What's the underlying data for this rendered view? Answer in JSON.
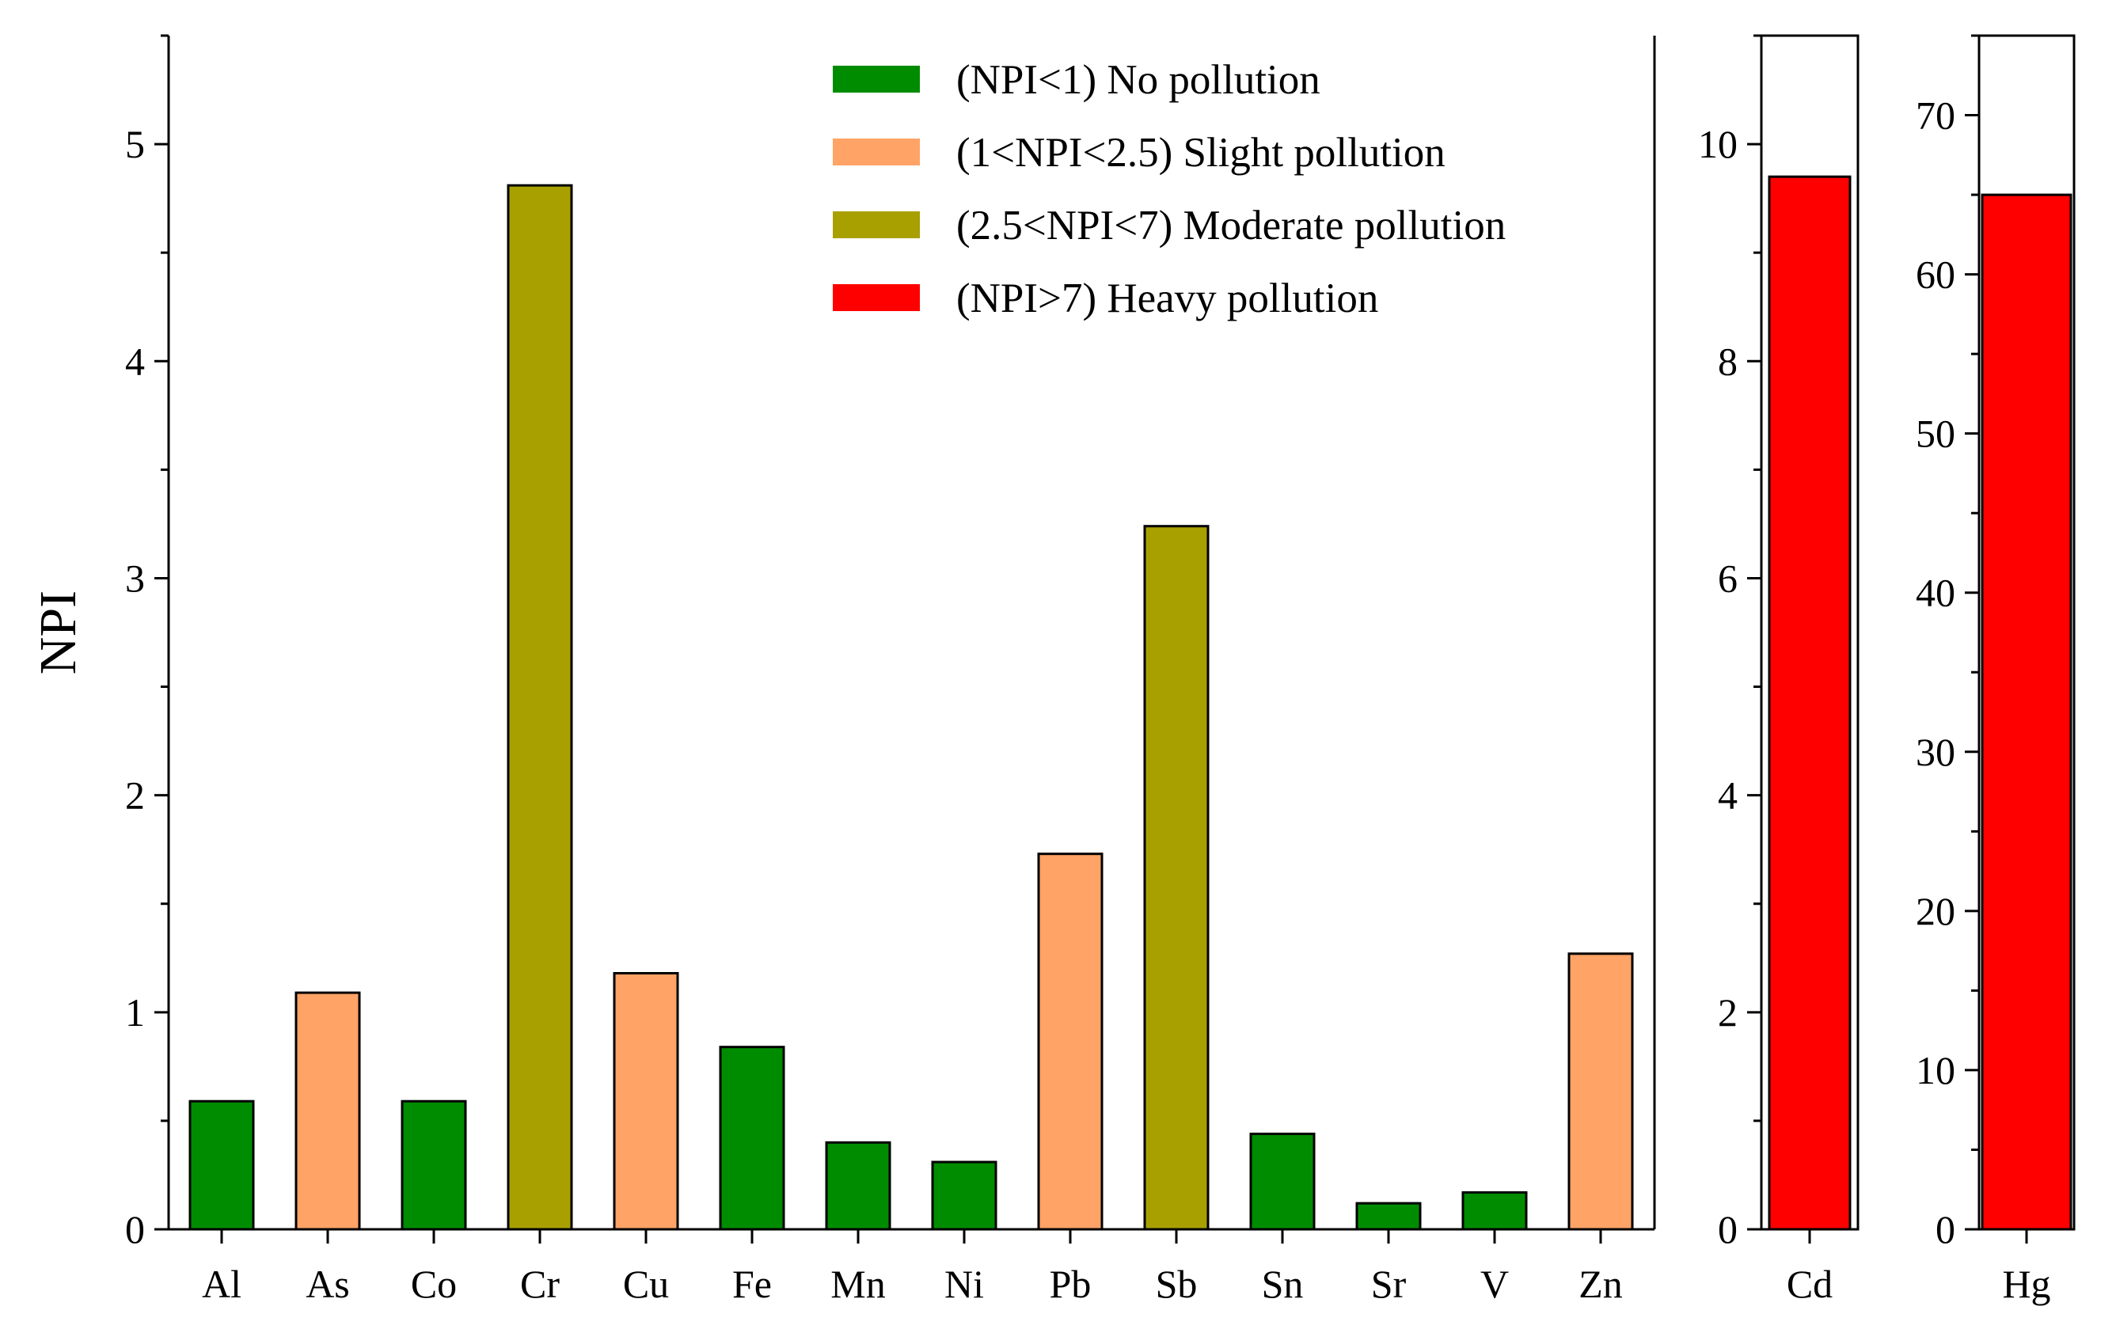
{
  "chart_data": [
    {
      "type": "bar",
      "title": "",
      "xlabel": "",
      "ylabel": "NPI",
      "ylim": [
        0,
        5.5
      ],
      "yticks": [
        "0",
        "1",
        "2",
        "3",
        "4",
        "5"
      ],
      "grid": false,
      "categories": [
        "Al",
        "As",
        "Co",
        "Cr",
        "Cu",
        "Fe",
        "Mn",
        "Ni",
        "Pb",
        "Sb",
        "Sn",
        "Sr",
        "V",
        "Zn"
      ],
      "values": [
        0.59,
        1.09,
        0.59,
        4.81,
        1.18,
        0.84,
        0.4,
        0.31,
        1.73,
        3.24,
        0.44,
        0.12,
        0.17,
        1.27
      ],
      "classes": [
        "none",
        "slight",
        "none",
        "moderate",
        "slight",
        "none",
        "none",
        "none",
        "slight",
        "moderate",
        "none",
        "none",
        "none",
        "slight"
      ]
    },
    {
      "type": "bar",
      "title": "",
      "ylabel": "",
      "ylim": [
        0,
        11
      ],
      "yticks": [
        "0",
        "2",
        "4",
        "6",
        "8",
        "10"
      ],
      "grid": false,
      "categories": [
        "Cd"
      ],
      "values": [
        9.7
      ],
      "classes": [
        "heavy"
      ]
    },
    {
      "type": "bar",
      "title": "",
      "ylabel": "",
      "ylim": [
        0,
        75
      ],
      "yticks": [
        "0",
        "10",
        "20",
        "30",
        "40",
        "50",
        "60",
        "70"
      ],
      "grid": false,
      "categories": [
        "Hg"
      ],
      "values": [
        65
      ],
      "classes": [
        "heavy"
      ]
    }
  ],
  "legend": {
    "placement": "top-right",
    "entries": [
      {
        "key": "none",
        "label": "(NPI<1) No pollution",
        "color": "#008c00"
      },
      {
        "key": "slight",
        "label": "(1<NPI<2.5) Slight pollution",
        "color": "#ffa366"
      },
      {
        "key": "moderate",
        "label": "(2.5<NPI<7) Moderate pollution",
        "color": "#a8a000"
      },
      {
        "key": "heavy",
        "label": "(NPI>7) Heavy pollution",
        "color": "#ff0000"
      }
    ]
  }
}
